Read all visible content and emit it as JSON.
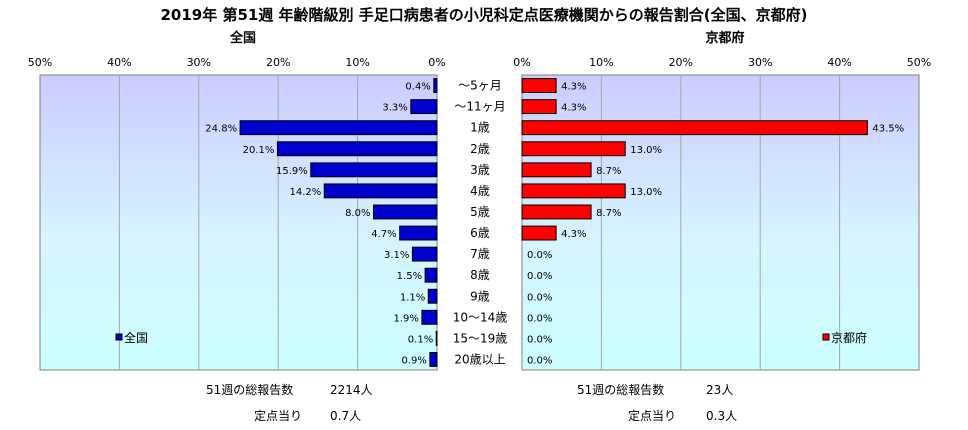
{
  "title": "2019年 第51週 年齢階級別 手足口病患者の小児科定点医療機関からの報告割合(全国、京都府)",
  "chart_data": [
    {
      "type": "bar",
      "orientation": "horizontal",
      "title": "全国",
      "legend": "全国",
      "legend_position": "bottom-left",
      "color": "#0000cc",
      "categories": [
        "～5ヶ月",
        "～11ヶ月",
        "1歳",
        "2歳",
        "3歳",
        "4歳",
        "5歳",
        "6歳",
        "7歳",
        "8歳",
        "9歳",
        "10～14歳",
        "15～19歳",
        "20歳以上"
      ],
      "values": [
        0.4,
        3.3,
        24.8,
        20.1,
        15.9,
        14.2,
        8.0,
        4.7,
        3.1,
        1.5,
        1.1,
        1.9,
        0.1,
        0.9
      ],
      "labels": [
        "0.4%",
        "3.3%",
        "24.8%",
        "20.1%",
        "15.9%",
        "14.2%",
        "8.0%",
        "4.7%",
        "3.1%",
        "1.5%",
        "1.1%",
        "1.9%",
        "0.1%",
        "0.9%"
      ],
      "xlim": [
        0,
        50
      ],
      "ticks": [
        "0%",
        "10%",
        "20%",
        "30%",
        "40%",
        "50%"
      ],
      "reversed": true
    },
    {
      "type": "bar",
      "orientation": "horizontal",
      "title": "京都府",
      "legend": "京都府",
      "legend_position": "bottom-right",
      "color": "#ff0000",
      "categories": [
        "～5ヶ月",
        "～11ヶ月",
        "1歳",
        "2歳",
        "3歳",
        "4歳",
        "5歳",
        "6歳",
        "7歳",
        "8歳",
        "9歳",
        "10～14歳",
        "15～19歳",
        "20歳以上"
      ],
      "values": [
        4.3,
        4.3,
        43.5,
        13.0,
        8.7,
        13.0,
        8.7,
        4.3,
        0,
        0,
        0,
        0,
        0,
        0
      ],
      "labels": [
        "4.3%",
        "4.3%",
        "43.5%",
        "13.0%",
        "8.7%",
        "13.0%",
        "8.7%",
        "4.3%",
        "0.0%",
        "0.0%",
        "0.0%",
        "0.0%",
        "0.0%",
        "0.0%"
      ],
      "xlim": [
        0,
        50
      ],
      "ticks": [
        "0%",
        "10%",
        "20%",
        "30%",
        "40%",
        "50%"
      ],
      "reversed": false
    }
  ],
  "footer": {
    "national": {
      "total_label": "51週の総報告数",
      "total_value": "2214人",
      "per_label": "定点当り",
      "per_value": "0.7人"
    },
    "kyoto": {
      "total_label": "51週の総報告数",
      "total_value": "23人",
      "per_label": "定点当り",
      "per_value": "0.3人"
    }
  }
}
